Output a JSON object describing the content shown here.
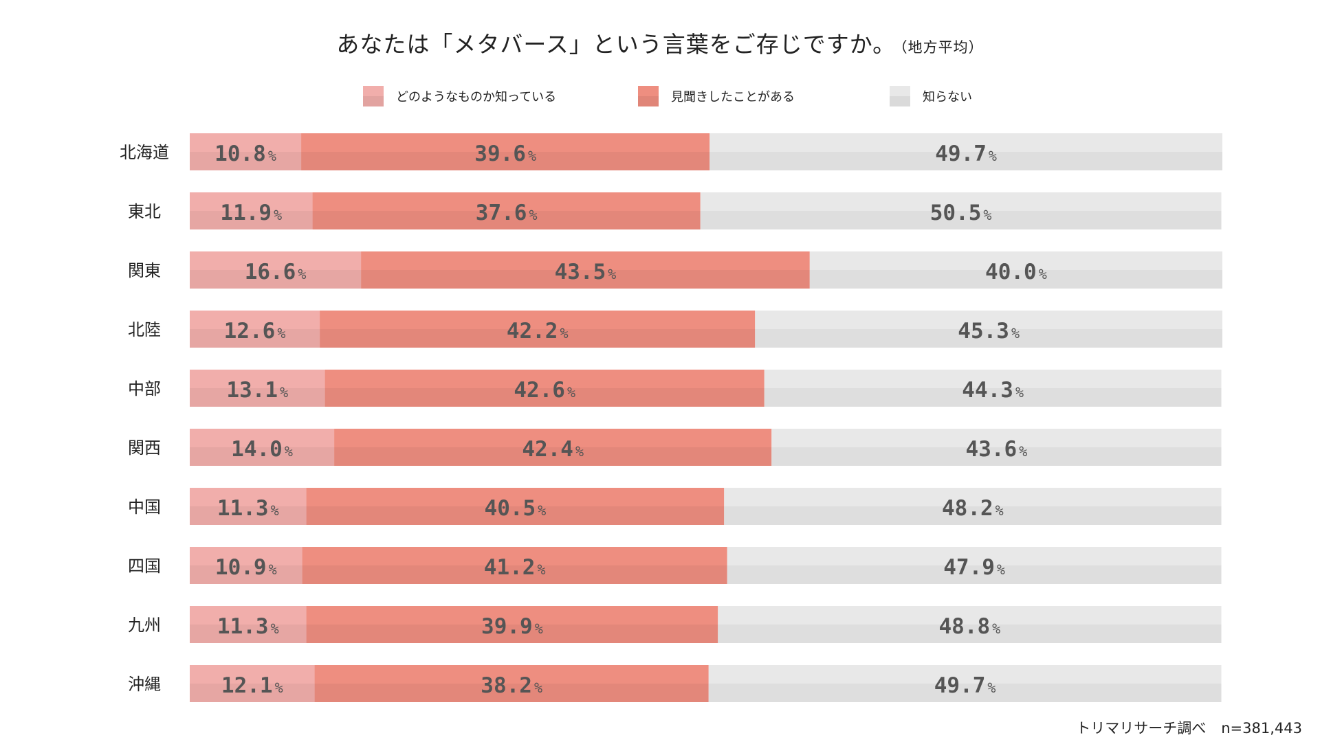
{
  "chart_data": {
    "type": "bar",
    "orientation": "horizontal",
    "stacked": true,
    "title": "あなたは「メタバース」という言葉をご存じですか。",
    "subtitle": "（地方平均）",
    "unit": "%",
    "xlim": [
      0,
      100.1
    ],
    "categories": [
      "北海道",
      "東北",
      "関東",
      "北陸",
      "中部",
      "関西",
      "中国",
      "四国",
      "九州",
      "沖縄"
    ],
    "series": [
      {
        "name": "どのようなものか知っている",
        "color": "#f1aeab",
        "values": [
          10.8,
          11.9,
          16.6,
          12.6,
          13.1,
          14.0,
          11.3,
          10.9,
          11.3,
          12.1
        ]
      },
      {
        "name": "見聞きしたことがある",
        "color": "#ee8e80",
        "values": [
          39.6,
          37.6,
          43.5,
          42.2,
          42.6,
          42.4,
          40.5,
          41.2,
          39.9,
          38.2
        ]
      },
      {
        "name": "知らない",
        "color": "#e8e8e8",
        "values": [
          49.7,
          50.5,
          40.0,
          45.3,
          44.3,
          43.6,
          48.2,
          47.9,
          48.8,
          49.7
        ]
      }
    ],
    "legend_position": "top",
    "grid": false
  },
  "footer": {
    "source": "トリマリサーチ調べ",
    "sample": "n=381,443"
  }
}
